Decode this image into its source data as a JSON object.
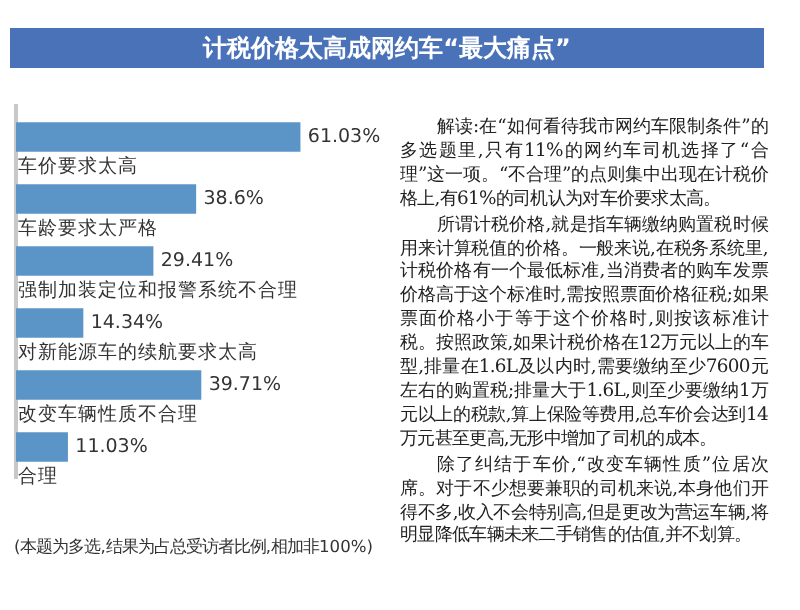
{
  "chart_data": {
    "type": "bar",
    "orientation": "horizontal",
    "title": "计税价格太高成网约车“最大痛点”",
    "categories": [
      "车价要求太高",
      "车龄要求太严格",
      "强制加装定位和报警系统不合理",
      "对新能源车的续航要求太高",
      "改变车辆性质不合理",
      "合理"
    ],
    "values": [
      61.03,
      38.6,
      29.41,
      14.34,
      39.71,
      11.03
    ],
    "value_labels": [
      "61.03%",
      "38.6%",
      "29.41%",
      "14.34%",
      "39.71%",
      "11.03%"
    ],
    "color": "#5b95c8",
    "annotations": [
      "(本题为多选,结果为占总受访者比例,相加非100%)",
      "解读:在“如何看待我市网约车限制条件”的多选题里,只有11%的网约车司机选择了“合理”这一项。“不合理”的点则集中出现在计税价格上,有61%的司机认为对车价要求太高。",
      "所谓计税价格,就是指车辆缴纳购置税时候用来计算税值的价格。一般来说,在税务系统里,计税价格有一个最低标准,当消费者的购车发票价格高于这个标准时,需按照票面价格征税;如果票面价格小于等于这个价格时,则按该标准计税。按照政策,如果计税价格在12万元以上的车型,排量在1.6L及以内时,需要缴纳至少7600元左右的购置税;排量大于1.6L,则至少要缴纳1万元以上的税款,算上保险等费用,总车价会达到14万元甚至更高,无形中增加了司机的成本。",
      "除了纠结于车价,“改变车辆性质”位居次席。对于不少想要兼职的司机来说,本身他们开得不多,收入不会特别高,但是更改为营运车辆,将明显降低车辆未来二手销售的估值,并不划算。"
    ]
  }
}
